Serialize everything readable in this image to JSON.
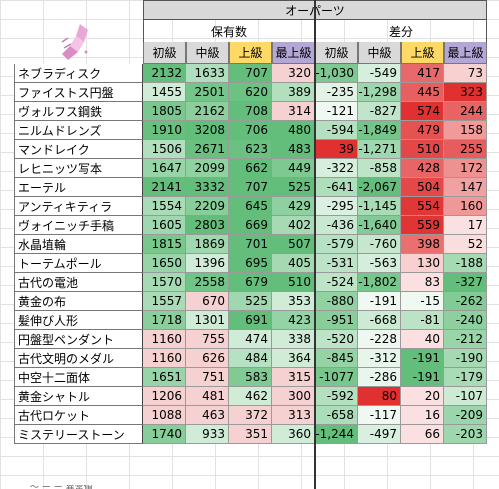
{
  "header": {
    "title": "オーパーツ",
    "group_holdings": "保有数",
    "group_diff": "差分",
    "columns": [
      "初級",
      "中級",
      "上級",
      "最上級",
      "初級",
      "中級",
      "上級",
      "最上級"
    ]
  },
  "colors": {
    "header_gray": "#d9d9d9",
    "advanced_header": "#ffd966",
    "top_header": "#b4a7d6",
    "green_strong": "#63be7b",
    "red_strong": "#e03030",
    "pink_light": "#f4cccc"
  },
  "rows": [
    {
      "name": "ネブラディスク",
      "v": [
        2132,
        1633,
        707,
        320
      ],
      "d": [
        -1030,
        -549,
        417,
        73
      ],
      "dt": [
        "-1,030",
        "-549",
        "417",
        "73"
      ]
    },
    {
      "name": "ファイストス円盤",
      "v": [
        1455,
        2501,
        620,
        389
      ],
      "d": [
        -235,
        -1298,
        445,
        323
      ],
      "dt": [
        "-235",
        "-1,298",
        "445",
        "323"
      ]
    },
    {
      "name": "ヴォルフス鋼鉄",
      "v": [
        1805,
        2162,
        708,
        314
      ],
      "d": [
        -121,
        -827,
        574,
        244
      ],
      "dt": [
        "-121",
        "-827",
        "574",
        "244"
      ]
    },
    {
      "name": "ニルムドレンズ",
      "v": [
        1910,
        3208,
        706,
        480
      ],
      "d": [
        -594,
        -1849,
        479,
        158
      ],
      "dt": [
        "-594",
        "-1,849",
        "479",
        "158"
      ]
    },
    {
      "name": "マンドレイク",
      "v": [
        1506,
        2671,
        623,
        483
      ],
      "d": [
        39,
        -1271,
        510,
        255
      ],
      "dt": [
        "39",
        "-1,271",
        "510",
        "255"
      ]
    },
    {
      "name": "レヒニッツ写本",
      "v": [
        1647,
        2099,
        662,
        449
      ],
      "d": [
        -322,
        -858,
        428,
        172
      ],
      "dt": [
        "-322",
        "-858",
        "428",
        "172"
      ]
    },
    {
      "name": "エーテル",
      "v": [
        2141,
        3332,
        707,
        525
      ],
      "d": [
        -641,
        -2067,
        504,
        147
      ],
      "dt": [
        "-641",
        "-2,067",
        "504",
        "147"
      ]
    },
    {
      "name": "アンティキティラ",
      "v": [
        1554,
        2209,
        645,
        429
      ],
      "d": [
        -295,
        -1145,
        554,
        160
      ],
      "dt": [
        "-295",
        "-1,145",
        "554",
        "160"
      ]
    },
    {
      "name": "ヴォイニッチ手稿",
      "v": [
        1605,
        2803,
        669,
        402
      ],
      "d": [
        -436,
        -1640,
        559,
        17
      ],
      "dt": [
        "-436",
        "-1,640",
        "559",
        "17"
      ]
    },
    {
      "name": "水晶埴輪",
      "v": [
        1815,
        1869,
        701,
        507
      ],
      "d": [
        -579,
        -760,
        398,
        52
      ],
      "dt": [
        "-579",
        "-760",
        "398",
        "52"
      ]
    },
    {
      "name": "トーテムポール",
      "v": [
        1650,
        1396,
        695,
        405
      ],
      "d": [
        -531,
        -563,
        130,
        -188
      ],
      "dt": [
        "-531",
        "-563",
        "130",
        "-188"
      ]
    },
    {
      "name": "古代の電池",
      "v": [
        1570,
        2558,
        679,
        510
      ],
      "d": [
        -524,
        -1802,
        83,
        -327
      ],
      "dt": [
        "-524",
        "-1,802",
        "83",
        "-327"
      ]
    },
    {
      "name": "黄金の布",
      "v": [
        1557,
        670,
        525,
        353
      ],
      "d": [
        -880,
        -191,
        -15,
        -262
      ],
      "dt": [
        "-880",
        "-191",
        "-15",
        "-262"
      ]
    },
    {
      "name": "髪伸び人形",
      "v": [
        1718,
        1301,
        691,
        423
      ],
      "d": [
        -951,
        -668,
        -81,
        -240
      ],
      "dt": [
        "-951",
        "-668",
        "-81",
        "-240"
      ]
    },
    {
      "name": "円盤型ペンダント",
      "v": [
        1160,
        755,
        474,
        338
      ],
      "d": [
        -520,
        -228,
        40,
        -212
      ],
      "dt": [
        "-520",
        "-228",
        "40",
        "-212"
      ]
    },
    {
      "name": "古代文明のメダル",
      "v": [
        1160,
        626,
        484,
        364
      ],
      "d": [
        -845,
        -312,
        -191,
        -190
      ],
      "dt": [
        "-845",
        "-312",
        "-191",
        "-190"
      ]
    },
    {
      "name": "中空十二面体",
      "v": [
        1651,
        751,
        583,
        315
      ],
      "d": [
        -1077,
        -286,
        -191,
        -179
      ],
      "dt": [
        "-1077",
        "-286",
        "-191",
        "-179"
      ]
    },
    {
      "name": "黄金シャトル",
      "v": [
        1206,
        481,
        462,
        300
      ],
      "d": [
        -592,
        80,
        20,
        -107
      ],
      "dt": [
        "-592",
        "80",
        "20",
        "-107"
      ]
    },
    {
      "name": "古代ロケット",
      "v": [
        1088,
        463,
        372,
        313
      ],
      "d": [
        -658,
        -117,
        16,
        -209
      ],
      "dt": [
        "-658",
        "-117",
        "16",
        "-209"
      ]
    },
    {
      "name": "ミステリーストーン",
      "v": [
        1740,
        933,
        351,
        360
      ],
      "d": [
        -1244,
        -497,
        66,
        -203
      ],
      "dt": [
        "-1,244",
        "-497",
        "66",
        "-203"
      ]
    }
  ],
  "footer_partial": "～  ー ー 異常値"
}
